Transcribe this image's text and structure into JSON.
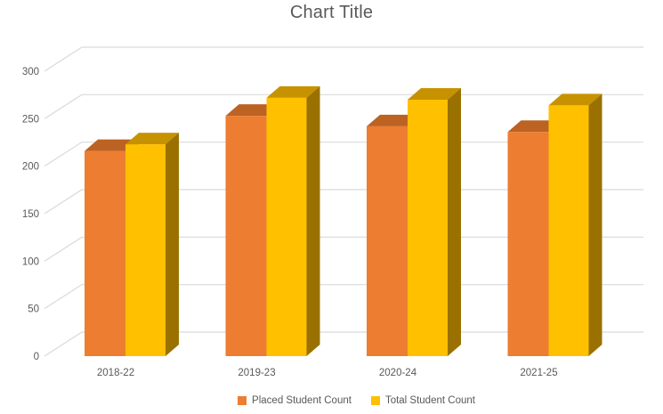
{
  "title": "Chart Title",
  "chart_data": {
    "type": "bar",
    "style": "3d-clustered-column",
    "title": "Chart Title",
    "categories": [
      "2018-22",
      "2019-23",
      "2020-24",
      "2021-25"
    ],
    "series": [
      {
        "name": "Placed Student Count",
        "color": "#ED7D31",
        "top_color": "#BC6222",
        "side_color": "#A3551D",
        "values": [
          216,
          253,
          242,
          236
        ]
      },
      {
        "name": "Total Student Count",
        "color": "#FFC000",
        "top_color": "#C79200",
        "side_color": "#9A7100",
        "values": [
          223,
          272,
          270,
          264
        ]
      }
    ],
    "xlabel": "",
    "ylabel": "",
    "ylim": [
      0,
      300
    ],
    "ytick_step": 50,
    "yticks": [
      "0",
      "50",
      "100",
      "150",
      "200",
      "250",
      "300"
    ],
    "grid": true,
    "legend_position": "bottom",
    "gridline_color": "#D9D9D9",
    "text_color": "#595959",
    "background": "#FFFFFF"
  }
}
